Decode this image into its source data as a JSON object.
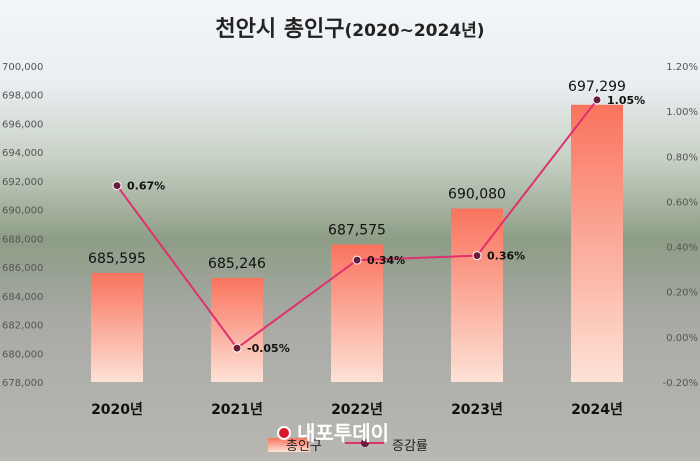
{
  "chart_data": {
    "type": "bar",
    "title": "천안시 총인구",
    "title_suffix": "(2020~2024년)",
    "categories": [
      "2020년",
      "2021년",
      "2022년",
      "2023년",
      "2024년"
    ],
    "series": [
      {
        "name": "총인구",
        "type": "bar",
        "axis": "left",
        "values": [
          685595,
          685246,
          687575,
          690080,
          697299
        ],
        "labels": [
          "685,595",
          "685,246",
          "687,575",
          "690,080",
          "697,299"
        ]
      },
      {
        "name": "증감률",
        "type": "line",
        "axis": "right",
        "values": [
          0.67,
          -0.05,
          0.34,
          0.36,
          1.05
        ],
        "labels": [
          "0.67%",
          "-0.05%",
          "0.34%",
          "0.36%",
          "1.05%"
        ]
      }
    ],
    "left_axis": {
      "range": [
        678000,
        700000
      ],
      "ticks": [
        "700,000",
        "698,000",
        "696,000",
        "694,000",
        "692,000",
        "690,000",
        "688,000",
        "686,000",
        "684,000",
        "682,000",
        "680,000",
        "678,000"
      ]
    },
    "right_axis": {
      "range": [
        -0.2,
        1.2
      ],
      "ticks": [
        "1.20%",
        "1.00%",
        "0.80%",
        "0.60%",
        "0.40%",
        "0.20%",
        "0.00%",
        "-0.20%"
      ]
    },
    "legend_position": "bottom",
    "highlight_color": "#e8267a",
    "bar_color_top": "#f9735d",
    "bar_color_bottom": "#fde2d6",
    "line_color": "#e0306e"
  },
  "watermark": "내포투데이"
}
